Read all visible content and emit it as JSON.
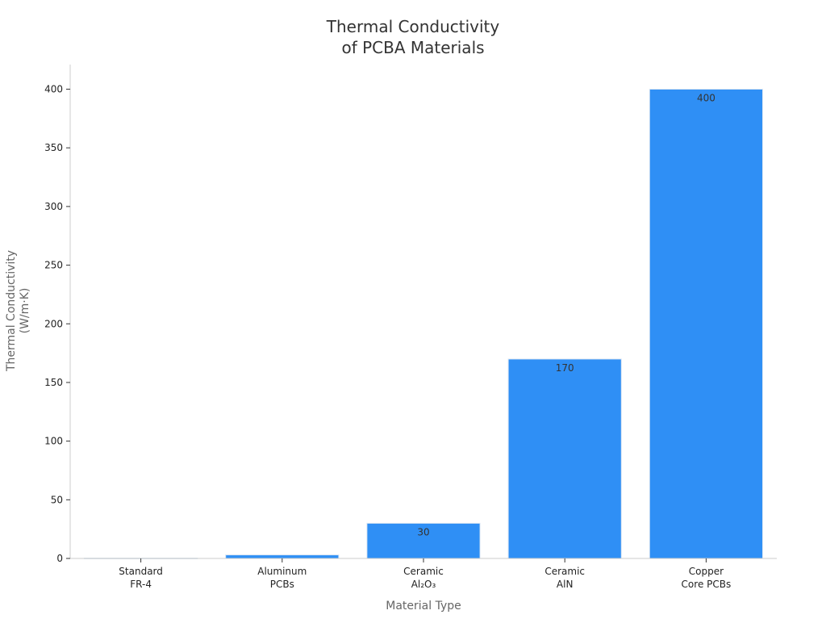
{
  "chart_data": {
    "type": "bar",
    "title_lines": [
      "Thermal Conductivity",
      "of PCBA Materials"
    ],
    "xlabel": "Material Type",
    "ylabel_lines": [
      "Thermal Conductivity",
      "(W/m·K)"
    ],
    "categories": [
      [
        "Standard",
        "FR-4"
      ],
      [
        "Aluminum",
        "PCBs"
      ],
      [
        "Ceramic",
        "Al₂O₃"
      ],
      [
        "Ceramic",
        "AlN"
      ],
      [
        "Copper",
        "Core PCBs"
      ]
    ],
    "values": [
      0.3,
      3,
      30,
      170,
      400
    ],
    "data_labels": [
      "",
      "",
      "30",
      "170",
      "400"
    ],
    "ylim": [
      0,
      420
    ],
    "yticks": [
      0,
      50,
      100,
      150,
      200,
      250,
      300,
      350,
      400
    ],
    "grid": false,
    "legend": "none",
    "colors": {
      "bar": "#2f8ff5",
      "bar_edge": "#dbe6f3",
      "axis": "#cccccc"
    }
  }
}
